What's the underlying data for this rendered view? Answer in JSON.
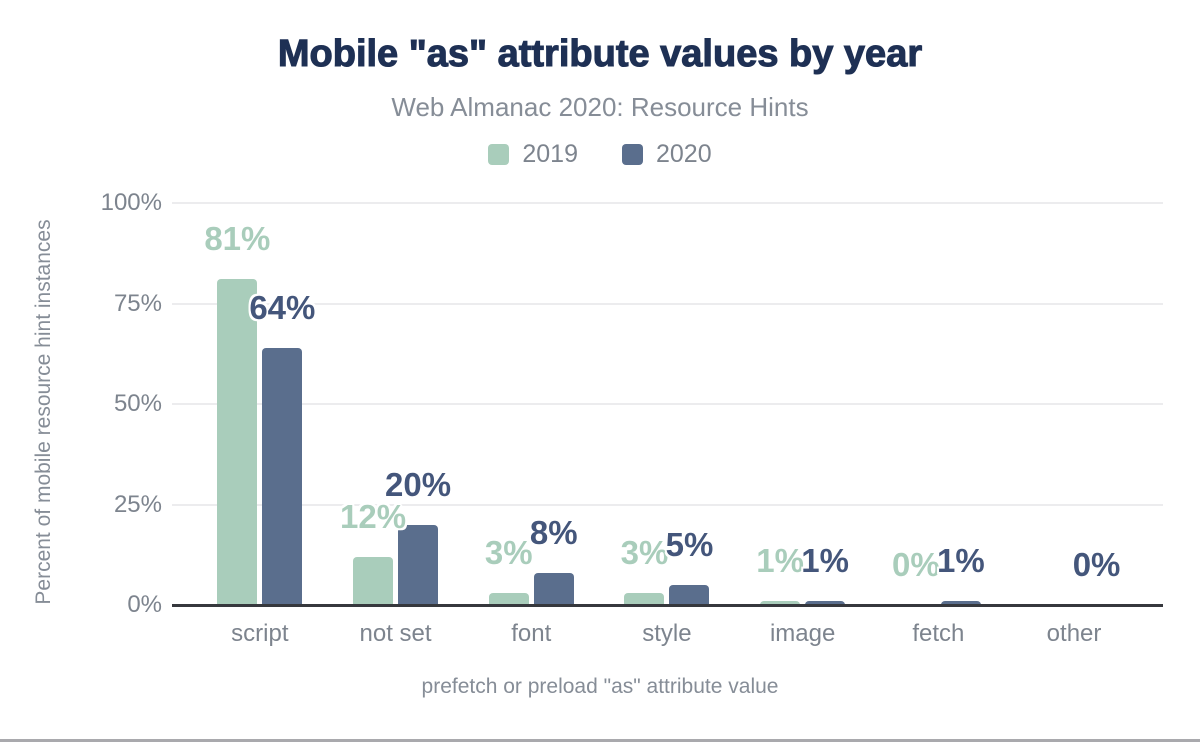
{
  "header": {
    "title": "Mobile \"as\" attribute values by year",
    "subtitle": "Web Almanac 2020: Resource Hints"
  },
  "chart_data": {
    "type": "bar",
    "title": "Mobile \"as\" attribute values by year",
    "subtitle": "Web Almanac 2020: Resource Hints",
    "categories": [
      "script",
      "not set",
      "font",
      "style",
      "image",
      "fetch",
      "other"
    ],
    "series": [
      {
        "name": "2019",
        "color": "#a9cdbb",
        "label_color": "#a9cdbb",
        "values": [
          81,
          12,
          3,
          3,
          1,
          0,
          null
        ]
      },
      {
        "name": "2020",
        "color": "#5a6e8d",
        "label_color": "#44567b",
        "values": [
          64,
          20,
          8,
          5,
          1,
          1,
          0
        ]
      }
    ],
    "value_suffix": "%",
    "xlabel": "prefetch or preload \"as\" attribute value",
    "ylabel": "Percent of mobile resource hint instances",
    "ylim": [
      0,
      100
    ],
    "yticks": [
      0,
      25,
      50,
      75,
      100
    ],
    "ytick_suffix": "%",
    "grid": true,
    "legend_position": "top"
  },
  "colors": {
    "title": "#1e3054",
    "axis_text": "#7d848e",
    "muted_text": "#868d97",
    "gridline": "#ececee",
    "axis_line": "#36383d",
    "background": "#ffffff"
  }
}
